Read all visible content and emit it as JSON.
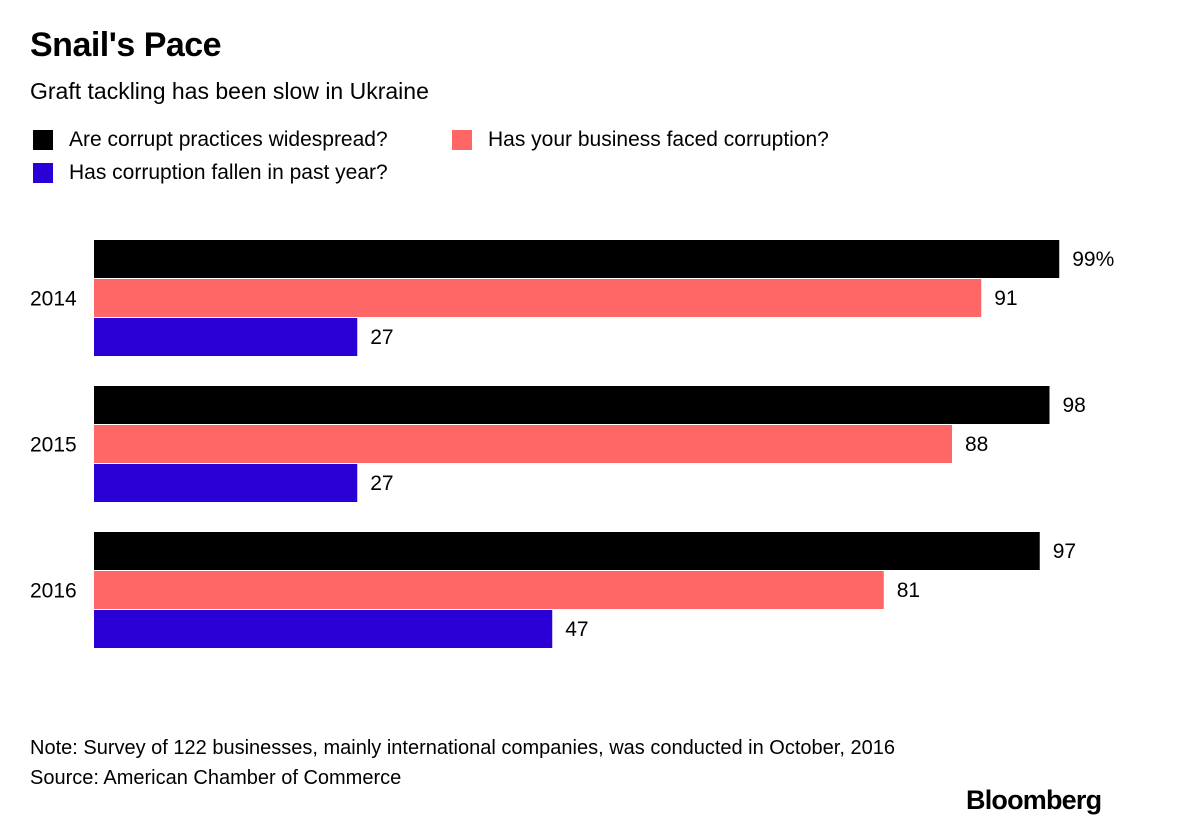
{
  "header": {
    "title": "Snail's Pace",
    "subtitle": "Graft tackling has been slow in Ukraine"
  },
  "chart_data": {
    "type": "bar",
    "orientation": "horizontal",
    "title": "Snail's Pace",
    "subtitle": "Graft tackling has been slow in Ukraine",
    "categories": [
      "2014",
      "2015",
      "2016"
    ],
    "series": [
      {
        "name": "Are corrupt practices widespread?",
        "color": "#000000",
        "values": [
          99,
          98,
          97
        ]
      },
      {
        "name": "Has your business faced corruption?",
        "color": "#ff6666",
        "values": [
          91,
          88,
          81
        ]
      },
      {
        "name": "Has corruption fallen in past year?",
        "color": "#2a00d6",
        "values": [
          27,
          27,
          47
        ]
      }
    ],
    "value_labels": [
      [
        "99%",
        "91",
        "27"
      ],
      [
        "98",
        "88",
        "27"
      ],
      [
        "97",
        "81",
        "47"
      ]
    ],
    "xlim": [
      0,
      100
    ],
    "unit": "%",
    "grid": false,
    "legend_position": "top-left"
  },
  "footer": {
    "note": "Note: Survey of 122 businesses, mainly international companies, was conducted in October, 2016",
    "source": "Source: American Chamber of Commerce",
    "brand": "Bloomberg"
  }
}
